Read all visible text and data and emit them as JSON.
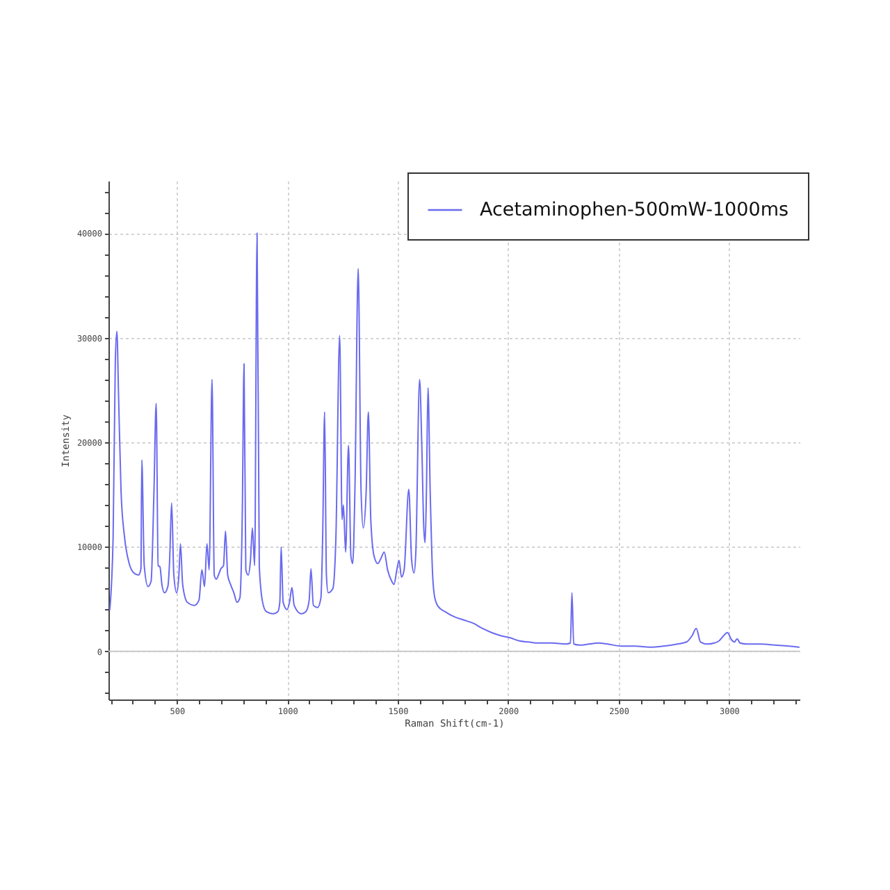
{
  "chart_data": {
    "type": "line",
    "xlabel": "Raman Shift(cm-1)",
    "ylabel": "Intensity",
    "x": [
      196,
      211,
      221,
      228,
      236,
      247,
      263,
      284,
      305,
      326,
      337,
      341,
      352,
      369,
      383,
      396,
      406,
      415,
      423,
      432,
      444,
      459,
      467,
      476,
      486,
      499,
      509,
      516,
      526,
      547,
      579,
      600,
      613,
      625,
      636,
      646,
      659,
      669,
      678,
      688,
      699,
      711,
      720,
      730,
      743,
      758,
      772,
      785,
      796,
      804,
      812,
      823,
      833,
      842,
      852,
      863,
      873,
      888,
      905,
      936,
      957,
      966,
      972,
      981,
      999,
      1010,
      1021,
      1031,
      1063,
      1084,
      1099,
      1107,
      1118,
      1137,
      1152,
      1160,
      1169,
      1177,
      1185,
      1206,
      1220,
      1237,
      1248,
      1254,
      1264,
      1277,
      1288,
      1296,
      1306,
      1321,
      1334,
      1344,
      1357,
      1367,
      1378,
      1393,
      1410,
      1424,
      1439,
      1454,
      1473,
      1483,
      1496,
      1506,
      1517,
      1529,
      1550,
      1563,
      1574,
      1582,
      1599,
      1609,
      1618,
      1624,
      1630,
      1637,
      1647,
      1658,
      1668,
      1683,
      1714,
      1757,
      1799,
      1841,
      1883,
      1925,
      1967,
      2009,
      2051,
      2093,
      2135,
      2198,
      2261,
      2282,
      2289,
      2297,
      2324,
      2366,
      2408,
      2450,
      2514,
      2577,
      2640,
      2703,
      2766,
      2808,
      2833,
      2852,
      2871,
      2903,
      2934,
      2955,
      2976,
      2993,
      3012,
      3025,
      3037,
      3050,
      3081,
      3144,
      3208,
      3271,
      3317
    ],
    "series": [
      {
        "name": "Acetaminophen-500mW-1000ms",
        "color": "#6a6af0",
        "values": [
          4000,
          10900,
          27700,
          30600,
          24200,
          15300,
          10900,
          8400,
          7500,
          7300,
          7900,
          18300,
          8200,
          6200,
          6700,
          15300,
          23700,
          8200,
          8100,
          6400,
          5600,
          6200,
          8700,
          14200,
          7300,
          5600,
          7300,
          10300,
          6400,
          4700,
          4400,
          4900,
          7800,
          6200,
          10300,
          7800,
          26000,
          7300,
          6900,
          7300,
          7900,
          8200,
          11500,
          7300,
          6400,
          5600,
          4700,
          5100,
          13100,
          27500,
          7800,
          7300,
          8700,
          11800,
          8200,
          40000,
          8200,
          4700,
          3800,
          3600,
          3800,
          4700,
          10000,
          4700,
          4000,
          4700,
          6100,
          4400,
          3600,
          3800,
          4900,
          7900,
          4400,
          4200,
          5100,
          10900,
          22900,
          7300,
          5600,
          6000,
          10900,
          30200,
          12600,
          14000,
          9500,
          19700,
          9100,
          8400,
          15300,
          36600,
          15300,
          11800,
          15300,
          22900,
          12600,
          9100,
          8400,
          8900,
          9500,
          7800,
          6700,
          6400,
          7800,
          8700,
          7100,
          7800,
          15500,
          8700,
          7500,
          9500,
          26000,
          19700,
          11800,
          10400,
          15300,
          25200,
          15300,
          7300,
          5100,
          4300,
          3800,
          3300,
          3000,
          2700,
          2200,
          1800,
          1500,
          1300,
          1000,
          900,
          800,
          800,
          700,
          800,
          5600,
          700,
          600,
          700,
          800,
          700,
          500,
          500,
          400,
          500,
          700,
          900,
          1500,
          2200,
          900,
          700,
          800,
          1000,
          1500,
          1800,
          1100,
          900,
          1200,
          800,
          700,
          700,
          600,
          500,
          400
        ]
      }
    ],
    "xlim": [
      190,
      3320
    ],
    "ylim": [
      -4600,
      45000
    ],
    "xticks": [
      {
        "value": 200,
        "label": null
      },
      {
        "value": 300,
        "label": null
      },
      {
        "value": 400,
        "label": null
      },
      500,
      {
        "value": 600,
        "label": null
      },
      {
        "value": 700,
        "label": null
      },
      {
        "value": 800,
        "label": null
      },
      {
        "value": 900,
        "label": null
      },
      1000,
      {
        "value": 1100,
        "label": null
      },
      {
        "value": 1200,
        "label": null
      },
      {
        "value": 1300,
        "label": null
      },
      {
        "value": 1400,
        "label": null
      },
      1500,
      {
        "value": 1600,
        "label": null
      },
      {
        "value": 1700,
        "label": null
      },
      {
        "value": 1800,
        "label": null
      },
      {
        "value": 1900,
        "label": null
      },
      2000,
      {
        "value": 2100,
        "label": null
      },
      {
        "value": 2200,
        "label": null
      },
      {
        "value": 2300,
        "label": null
      },
      {
        "value": 2400,
        "label": null
      },
      2500,
      {
        "value": 2600,
        "label": null
      },
      {
        "value": 2700,
        "label": null
      },
      {
        "value": 2800,
        "label": null
      },
      {
        "value": 2900,
        "label": null
      },
      3000,
      {
        "value": 3100,
        "label": null
      },
      {
        "value": 3200,
        "label": null
      },
      {
        "value": 3300,
        "label": null
      }
    ],
    "yticks": [
      {
        "value": -4000,
        "label": null
      },
      {
        "value": -2000,
        "label": null
      },
      0,
      {
        "value": 2000,
        "label": null
      },
      {
        "value": 4000,
        "label": null
      },
      {
        "value": 6000,
        "label": null
      },
      {
        "value": 8000,
        "label": null
      },
      10000,
      {
        "value": 12000,
        "label": null
      },
      {
        "value": 14000,
        "label": null
      },
      {
        "value": 16000,
        "label": null
      },
      {
        "value": 18000,
        "label": null
      },
      20000,
      {
        "value": 22000,
        "label": null
      },
      {
        "value": 24000,
        "label": null
      },
      {
        "value": 26000,
        "label": null
      },
      {
        "value": 28000,
        "label": null
      },
      30000,
      {
        "value": 32000,
        "label": null
      },
      {
        "value": 34000,
        "label": null
      },
      {
        "value": 36000,
        "label": null
      },
      {
        "value": 38000,
        "label": null
      },
      40000,
      {
        "value": 42000,
        "label": null
      },
      {
        "value": 44000,
        "label": null
      }
    ],
    "grid": true,
    "legend": "top right",
    "ref_lines": [
      {
        "axis": "y",
        "value": 0,
        "color": "#c8c8c8"
      }
    ]
  }
}
